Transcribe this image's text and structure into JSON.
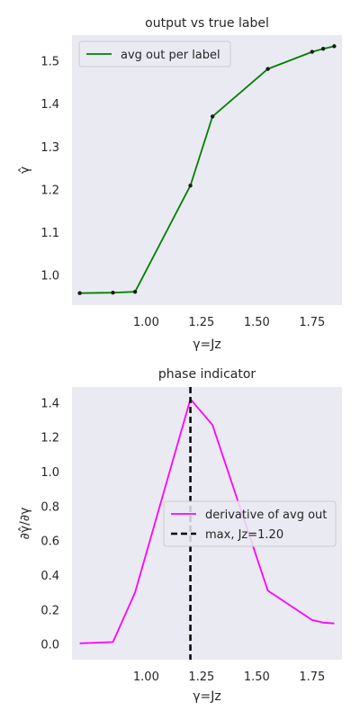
{
  "chart_data": [
    {
      "type": "line",
      "title": "output vs true label",
      "xlabel": "γ=Jz",
      "ylabel": "γ̂",
      "xlim": [
        0.665,
        1.885
      ],
      "ylim": [
        0.93,
        1.56
      ],
      "xticks": [
        1.0,
        1.25,
        1.5,
        1.75
      ],
      "xtick_labels": [
        "1.00",
        "1.25",
        "1.50",
        "1.75"
      ],
      "yticks": [
        1.0,
        1.1,
        1.2,
        1.3,
        1.4,
        1.5
      ],
      "ytick_labels": [
        "1.0",
        "1.1",
        "1.2",
        "1.3",
        "1.4",
        "1.5"
      ],
      "grid": false,
      "legend_position": "upper-left",
      "series": [
        {
          "name": "avg out per label",
          "color": "#008000",
          "markers": true,
          "x": [
            0.7,
            0.85,
            0.95,
            1.2,
            1.3,
            1.55,
            1.75,
            1.8,
            1.85
          ],
          "y": [
            0.958,
            0.959,
            0.961,
            1.209,
            1.37,
            1.481,
            1.521,
            1.528,
            1.534
          ]
        }
      ]
    },
    {
      "type": "line",
      "title": "phase indicator",
      "xlabel": "γ=Jz",
      "ylabel": "∂γ̂/∂γ",
      "xlim": [
        0.665,
        1.885
      ],
      "ylim": [
        -0.09,
        1.49
      ],
      "xticks": [
        1.0,
        1.25,
        1.5,
        1.75
      ],
      "xtick_labels": [
        "1.00",
        "1.25",
        "1.50",
        "1.75"
      ],
      "yticks": [
        0.0,
        0.2,
        0.4,
        0.6,
        0.8,
        1.0,
        1.2,
        1.4
      ],
      "ytick_labels": [
        "0.0",
        "0.2",
        "0.4",
        "0.6",
        "0.8",
        "1.0",
        "1.2",
        "1.4"
      ],
      "grid": false,
      "legend_position": "center-right",
      "series": [
        {
          "name": "derivative of avg out",
          "color": "#ff00ff",
          "x": [
            0.7,
            0.85,
            0.95,
            1.2,
            1.3,
            1.55,
            1.75,
            1.8,
            1.85
          ],
          "y": [
            0.005,
            0.012,
            0.3,
            1.42,
            1.27,
            0.31,
            0.14,
            0.125,
            0.12
          ]
        }
      ],
      "vline": {
        "x": 1.2,
        "label": "max, Jz=1.20",
        "color": "#000000"
      }
    }
  ]
}
